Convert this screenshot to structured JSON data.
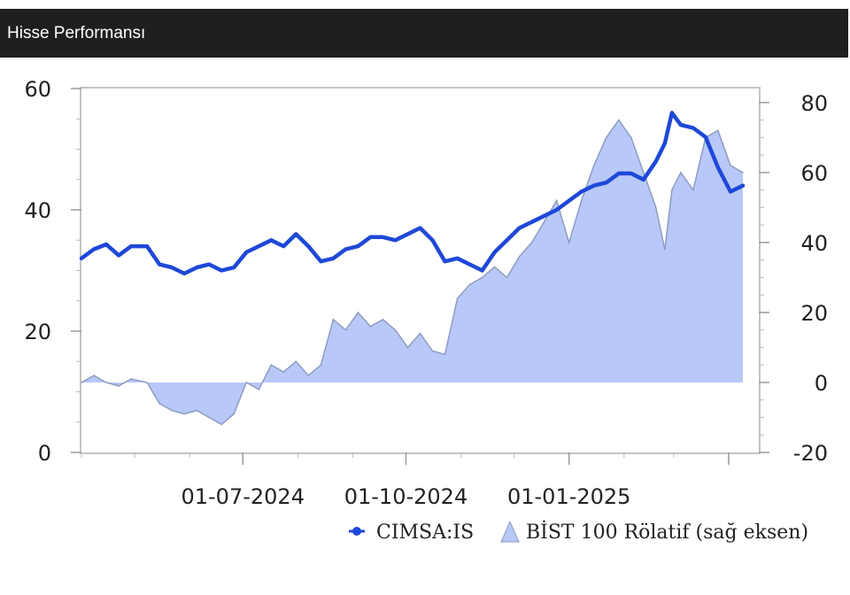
{
  "header": {
    "title": "Hisse Performansı"
  },
  "chart_data": {
    "type": "line",
    "title": "Hisse Performansı",
    "x_range": [
      "2024-04-01",
      "2025-04-18"
    ],
    "x_ticks": [
      "01-07-2024",
      "01-10-2024",
      "01-01-2025"
    ],
    "left_axis": {
      "ticks": [
        "0",
        "20",
        "40",
        "60"
      ],
      "ylim": [
        0,
        60
      ]
    },
    "right_axis": {
      "ticks": [
        "-20",
        "0",
        "20",
        "40",
        "60",
        "80"
      ],
      "ylim": [
        -20,
        84
      ]
    },
    "grid": false,
    "legend_position": "bottom-right",
    "series": [
      {
        "name": "CIMSA:IS",
        "type": "line",
        "axis": "left",
        "color": "#1e48d8",
        "points": [
          [
            "2024-04-01",
            32.0
          ],
          [
            "2024-04-08",
            33.5
          ],
          [
            "2024-04-15",
            34.3
          ],
          [
            "2024-04-22",
            32.5
          ],
          [
            "2024-04-29",
            34.0
          ],
          [
            "2024-05-08",
            34.0
          ],
          [
            "2024-05-15",
            31.0
          ],
          [
            "2024-05-22",
            30.5
          ],
          [
            "2024-05-29",
            29.5
          ],
          [
            "2024-06-05",
            30.5
          ],
          [
            "2024-06-12",
            31.0
          ],
          [
            "2024-06-19",
            30.0
          ],
          [
            "2024-06-26",
            30.5
          ],
          [
            "2024-07-03",
            33.0
          ],
          [
            "2024-07-10",
            34.0
          ],
          [
            "2024-07-17",
            35.0
          ],
          [
            "2024-07-24",
            34.0
          ],
          [
            "2024-07-31",
            36.0
          ],
          [
            "2024-08-07",
            34.0
          ],
          [
            "2024-08-14",
            31.5
          ],
          [
            "2024-08-21",
            32.0
          ],
          [
            "2024-08-28",
            33.5
          ],
          [
            "2024-09-04",
            34.0
          ],
          [
            "2024-09-11",
            35.5
          ],
          [
            "2024-09-18",
            35.5
          ],
          [
            "2024-09-25",
            35.0
          ],
          [
            "2024-10-02",
            36.0
          ],
          [
            "2024-10-09",
            37.0
          ],
          [
            "2024-10-16",
            35.0
          ],
          [
            "2024-10-23",
            31.5
          ],
          [
            "2024-10-30",
            32.0
          ],
          [
            "2024-11-06",
            31.0
          ],
          [
            "2024-11-13",
            30.0
          ],
          [
            "2024-11-20",
            33.0
          ],
          [
            "2024-11-27",
            35.0
          ],
          [
            "2024-12-04",
            37.0
          ],
          [
            "2024-12-11",
            38.0
          ],
          [
            "2024-12-18",
            39.0
          ],
          [
            "2024-12-25",
            40.0
          ],
          [
            "2025-01-01",
            41.5
          ],
          [
            "2025-01-08",
            43.0
          ],
          [
            "2025-01-15",
            44.0
          ],
          [
            "2025-01-22",
            44.5
          ],
          [
            "2025-01-29",
            46.0
          ],
          [
            "2025-02-05",
            46.0
          ],
          [
            "2025-02-12",
            45.0
          ],
          [
            "2025-02-19",
            48.0
          ],
          [
            "2025-02-24",
            51.0
          ],
          [
            "2025-02-28",
            56.0
          ],
          [
            "2025-03-05",
            54.0
          ],
          [
            "2025-03-12",
            53.5
          ],
          [
            "2025-03-19",
            52.0
          ],
          [
            "2025-03-26",
            47.0
          ],
          [
            "2025-04-02",
            43.0
          ],
          [
            "2025-04-09",
            44.0
          ]
        ]
      },
      {
        "name": "BİST 100 Rölatif (sağ eksen)",
        "type": "area",
        "axis": "right",
        "color": "#b8c8f8",
        "points": [
          [
            "2024-04-01",
            0.0
          ],
          [
            "2024-04-08",
            2.0
          ],
          [
            "2024-04-15",
            0.0
          ],
          [
            "2024-04-22",
            -1.0
          ],
          [
            "2024-04-29",
            1.0
          ],
          [
            "2024-05-08",
            0.0
          ],
          [
            "2024-05-15",
            -6.0
          ],
          [
            "2024-05-22",
            -8.0
          ],
          [
            "2024-05-29",
            -9.0
          ],
          [
            "2024-06-05",
            -8.0
          ],
          [
            "2024-06-12",
            -10.0
          ],
          [
            "2024-06-19",
            -12.0
          ],
          [
            "2024-06-26",
            -9.0
          ],
          [
            "2024-07-03",
            0.0
          ],
          [
            "2024-07-10",
            -2.0
          ],
          [
            "2024-07-17",
            5.0
          ],
          [
            "2024-07-24",
            3.0
          ],
          [
            "2024-07-31",
            6.0
          ],
          [
            "2024-08-07",
            2.0
          ],
          [
            "2024-08-14",
            5.0
          ],
          [
            "2024-08-21",
            18.0
          ],
          [
            "2024-08-28",
            15.0
          ],
          [
            "2024-09-04",
            20.0
          ],
          [
            "2024-09-11",
            16.0
          ],
          [
            "2024-09-18",
            18.0
          ],
          [
            "2024-09-25",
            15.0
          ],
          [
            "2024-10-02",
            10.0
          ],
          [
            "2024-10-09",
            14.0
          ],
          [
            "2024-10-16",
            9.0
          ],
          [
            "2024-10-23",
            8.0
          ],
          [
            "2024-10-30",
            24.0
          ],
          [
            "2024-11-06",
            28.0
          ],
          [
            "2024-11-13",
            30.0
          ],
          [
            "2024-11-20",
            33.0
          ],
          [
            "2024-11-27",
            30.0
          ],
          [
            "2024-12-04",
            36.0
          ],
          [
            "2024-12-11",
            40.0
          ],
          [
            "2024-12-18",
            46.0
          ],
          [
            "2024-12-25",
            52.0
          ],
          [
            "2025-01-01",
            40.0
          ],
          [
            "2025-01-08",
            52.0
          ],
          [
            "2025-01-15",
            62.0
          ],
          [
            "2025-01-22",
            70.0
          ],
          [
            "2025-01-29",
            75.0
          ],
          [
            "2025-02-05",
            70.0
          ],
          [
            "2025-02-12",
            60.0
          ],
          [
            "2025-02-19",
            50.0
          ],
          [
            "2025-02-24",
            38.0
          ],
          [
            "2025-02-28",
            55.0
          ],
          [
            "2025-03-05",
            60.0
          ],
          [
            "2025-03-12",
            55.0
          ],
          [
            "2025-03-19",
            70.0
          ],
          [
            "2025-03-26",
            72.0
          ],
          [
            "2025-04-02",
            62.0
          ],
          [
            "2025-04-09",
            60.0
          ]
        ]
      }
    ]
  }
}
